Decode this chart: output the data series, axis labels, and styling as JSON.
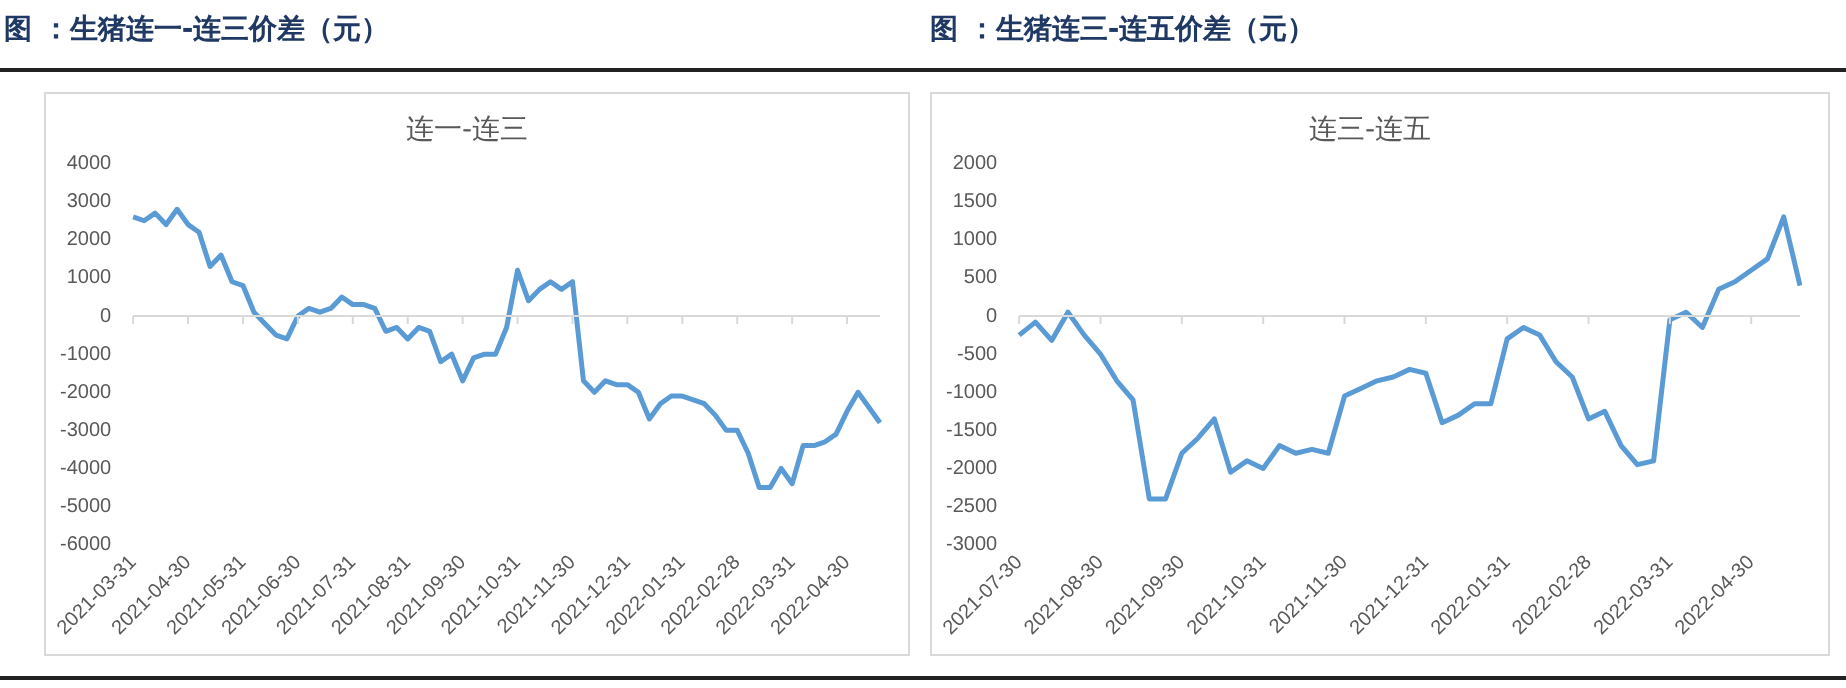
{
  "chart_data": [
    {
      "type": "line",
      "subtitle": "图 ：生猪连一-连三价差（元）",
      "title": "连一-连三",
      "color": "#5b9bd5",
      "grid": false,
      "ref_lines": [
        {
          "axis": "y",
          "value": 0,
          "color": "#d9d9d9"
        }
      ],
      "ylim": [
        -6000,
        4000
      ],
      "yticks": [
        -6000,
        -5000,
        -4000,
        -3000,
        -2000,
        -1000,
        0,
        1000,
        2000,
        3000,
        4000
      ],
      "categories": [
        "2021-03-31",
        null,
        null,
        null,
        null,
        "2021-04-30",
        null,
        null,
        null,
        null,
        "2021-05-31",
        null,
        null,
        null,
        null,
        "2021-06-30",
        null,
        null,
        null,
        null,
        "2021-07-31",
        null,
        null,
        null,
        null,
        "2021-08-31",
        null,
        null,
        null,
        null,
        "2021-09-30",
        null,
        null,
        null,
        null,
        "2021-10-31",
        null,
        null,
        null,
        null,
        "2021-11-30",
        null,
        null,
        null,
        null,
        "2021-12-31",
        null,
        null,
        null,
        null,
        "2022-01-31",
        null,
        null,
        null,
        null,
        "2022-02-28",
        null,
        null,
        null,
        null,
        "2022-03-31",
        null,
        null,
        null,
        null,
        "2022-04-30",
        null,
        null,
        null
      ],
      "values": [
        2600,
        2500,
        2700,
        2400,
        2800,
        2400,
        2200,
        1300,
        1600,
        900,
        800,
        100,
        -200,
        -500,
        -600,
        0,
        200,
        100,
        200,
        500,
        300,
        300,
        200,
        -400,
        -300,
        -600,
        -300,
        -400,
        -1200,
        -1000,
        -1700,
        -1100,
        -1000,
        -1000,
        -300,
        1200,
        400,
        700,
        900,
        700,
        900,
        -1700,
        -2000,
        -1700,
        -1800,
        -1800,
        -2000,
        -2700,
        -2300,
        -2100,
        -2100,
        -2200,
        -2300,
        -2600,
        -3000,
        -3000,
        -3600,
        -4500,
        -4500,
        -4000,
        -4400,
        -3400,
        -3400,
        -3300,
        -3100,
        -2500,
        -2000,
        -2400,
        -2800
      ]
    },
    {
      "type": "line",
      "subtitle": "图 ：生猪连三-连五价差（元）",
      "title": "连三-连五",
      "color": "#5b9bd5",
      "grid": false,
      "ref_lines": [
        {
          "axis": "y",
          "value": 0,
          "color": "#d9d9d9"
        }
      ],
      "ylim": [
        -3000,
        2000
      ],
      "yticks": [
        -3000,
        -2500,
        -2000,
        -1500,
        -1000,
        -500,
        0,
        500,
        1000,
        1500,
        2000
      ],
      "categories": [
        "2021-07-30",
        null,
        null,
        null,
        null,
        "2021-08-30",
        null,
        null,
        null,
        null,
        "2021-09-30",
        null,
        null,
        null,
        null,
        "2021-10-31",
        null,
        null,
        null,
        null,
        "2021-11-30",
        null,
        null,
        null,
        null,
        "2021-12-31",
        null,
        null,
        null,
        null,
        "2022-01-31",
        null,
        null,
        null,
        null,
        "2022-02-28",
        null,
        null,
        null,
        null,
        "2022-03-31",
        null,
        null,
        null,
        null,
        "2022-04-30",
        null,
        null,
        null
      ],
      "values": [
        -250,
        -80,
        -320,
        50,
        -250,
        -500,
        -850,
        -1100,
        -2400,
        -2400,
        -1800,
        -1600,
        -1350,
        -2050,
        -1900,
        -2000,
        -1700,
        -1800,
        -1750,
        -1800,
        -1050,
        -950,
        -850,
        -800,
        -700,
        -750,
        -1400,
        -1300,
        -1150,
        -1150,
        -300,
        -150,
        -250,
        -600,
        -800,
        -1350,
        -1250,
        -1700,
        -1950,
        -1900,
        -50,
        50,
        -150,
        350,
        450,
        600,
        750,
        1300,
        400
      ]
    }
  ]
}
